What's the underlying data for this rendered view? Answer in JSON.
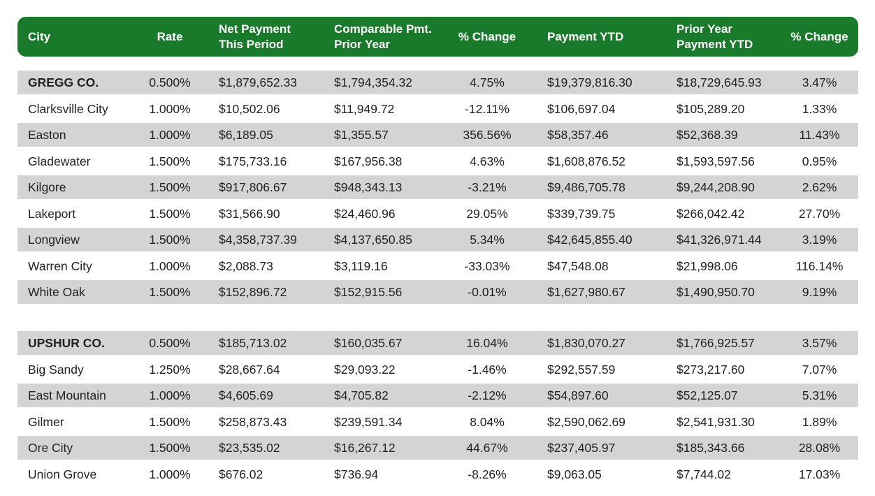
{
  "header": {
    "city": "City",
    "rate": "Rate",
    "net_payment_1": "Net Payment",
    "net_payment_2": "This Period",
    "comparable_1": "Comparable Pmt.",
    "comparable_2": "Prior Year",
    "pct_change_1": "% Change",
    "payment_ytd": "Payment YTD",
    "prior_ytd_1": "Prior Year",
    "prior_ytd_2": "Payment YTD",
    "pct_change_2": "% Change"
  },
  "colors": {
    "header_bg": "#1a7a2c",
    "shaded_row": "#d4d4d4"
  },
  "rows": [
    {
      "city": "GREGG CO.",
      "rate": "0.500%",
      "net": "$1,879,652.33",
      "comp": "$1,794,354.32",
      "pct1": "4.75%",
      "ytd": "$19,379,816.30",
      "prior": "$18,729,645.93",
      "pct2": "3.47%"
    },
    {
      "city": "Clarksville City",
      "rate": "1.000%",
      "net": "$10,502.06",
      "comp": "$11,949.72",
      "pct1": "-12.11%",
      "ytd": "$106,697.04",
      "prior": "$105,289.20",
      "pct2": "1.33%"
    },
    {
      "city": "Easton",
      "rate": "1.000%",
      "net": "$6,189.05",
      "comp": "$1,355.57",
      "pct1": "356.56%",
      "ytd": "$58,357.46",
      "prior": "$52,368.39",
      "pct2": "11.43%"
    },
    {
      "city": "Gladewater",
      "rate": "1.500%",
      "net": "$175,733.16",
      "comp": "$167,956.38",
      "pct1": "4.63%",
      "ytd": "$1,608,876.52",
      "prior": "$1,593,597.56",
      "pct2": "0.95%"
    },
    {
      "city": "Kilgore",
      "rate": "1.500%",
      "net": "$917,806.67",
      "comp": "$948,343.13",
      "pct1": "-3.21%",
      "ytd": "$9,486,705.78",
      "prior": "$9,244,208.90",
      "pct2": "2.62%"
    },
    {
      "city": "Lakeport",
      "rate": "1.500%",
      "net": "$31,566.90",
      "comp": "$24,460.96",
      "pct1": "29.05%",
      "ytd": "$339,739.75",
      "prior": "$266,042.42",
      "pct2": "27.70%"
    },
    {
      "city": "Longview",
      "rate": "1.500%",
      "net": "$4,358,737.39",
      "comp": "$4,137,650.85",
      "pct1": "5.34%",
      "ytd": "$42,645,855.40",
      "prior": "$41,326,971.44",
      "pct2": "3.19%"
    },
    {
      "city": "Warren City",
      "rate": "1.000%",
      "net": "$2,088.73",
      "comp": "$3,119.16",
      "pct1": "-33.03%",
      "ytd": "$47,548.08",
      "prior": "$21,998.06",
      "pct2": "116.14%"
    },
    {
      "city": "White Oak",
      "rate": "1.500%",
      "net": "$152,896.72",
      "comp": "$152,915.56",
      "pct1": "-0.01%",
      "ytd": "$1,627,980.67",
      "prior": "$1,490,950.70",
      "pct2": "9.19%"
    },
    {
      "city": "UPSHUR CO.",
      "rate": "0.500%",
      "net": "$185,713.02",
      "comp": "$160,035.67",
      "pct1": "16.04%",
      "ytd": "$1,830,070.27",
      "prior": "$1,766,925.57",
      "pct2": "3.57%"
    },
    {
      "city": "Big Sandy",
      "rate": "1.250%",
      "net": "$28,667.64",
      "comp": "$29,093.22",
      "pct1": "-1.46%",
      "ytd": "$292,557.59",
      "prior": "$273,217.60",
      "pct2": "7.07%"
    },
    {
      "city": "East Mountain",
      "rate": "1.000%",
      "net": "$4,605.69",
      "comp": "$4,705.82",
      "pct1": "-2.12%",
      "ytd": "$54,897.60",
      "prior": "$52,125.07",
      "pct2": "5.31%"
    },
    {
      "city": "Gilmer",
      "rate": "1.500%",
      "net": "$258,873.43",
      "comp": "$239,591.34",
      "pct1": "8.04%",
      "ytd": "$2,590,062.69",
      "prior": "$2,541,931.30",
      "pct2": "1.89%"
    },
    {
      "city": "Ore City",
      "rate": "1.500%",
      "net": "$23,535.02",
      "comp": "$16,267.12",
      "pct1": "44.67%",
      "ytd": "$237,405.97",
      "prior": "$185,343.66",
      "pct2": "28.08%"
    },
    {
      "city": "Union Grove",
      "rate": "1.000%",
      "net": "$676.02",
      "comp": "$736.94",
      "pct1": "-8.26%",
      "ytd": "$9,063.05",
      "prior": "$7,744.02",
      "pct2": "17.03%"
    }
  ]
}
